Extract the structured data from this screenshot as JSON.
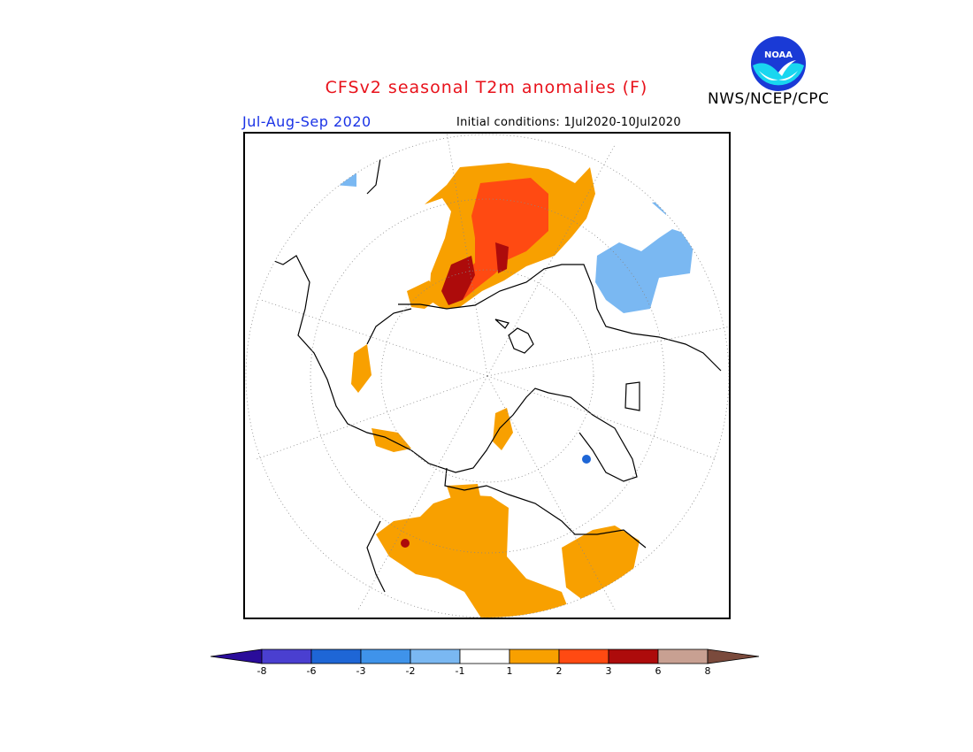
{
  "title": "CFSv2 seasonal T2m anomalies (F)",
  "season": "Jul-Aug-Sep 2020",
  "initial_conditions": "Initial conditions: 1Jul2020-10Jul2020",
  "agency": "NWS/NCEP/CPC",
  "logo_text": "NOAA",
  "colorbar": {
    "colors": [
      "#2a0c9a",
      "#4a3fd0",
      "#1e66d6",
      "#3f93ea",
      "#7ab8f2",
      "#ffffff",
      "#f8a000",
      "#ff4a12",
      "#ad0b0b",
      "#c8a092",
      "#7a4a3c"
    ],
    "labels": [
      "-8",
      "-6",
      "-3",
      "-2",
      "-1",
      "1",
      "2",
      "3",
      "6",
      "8"
    ]
  }
}
